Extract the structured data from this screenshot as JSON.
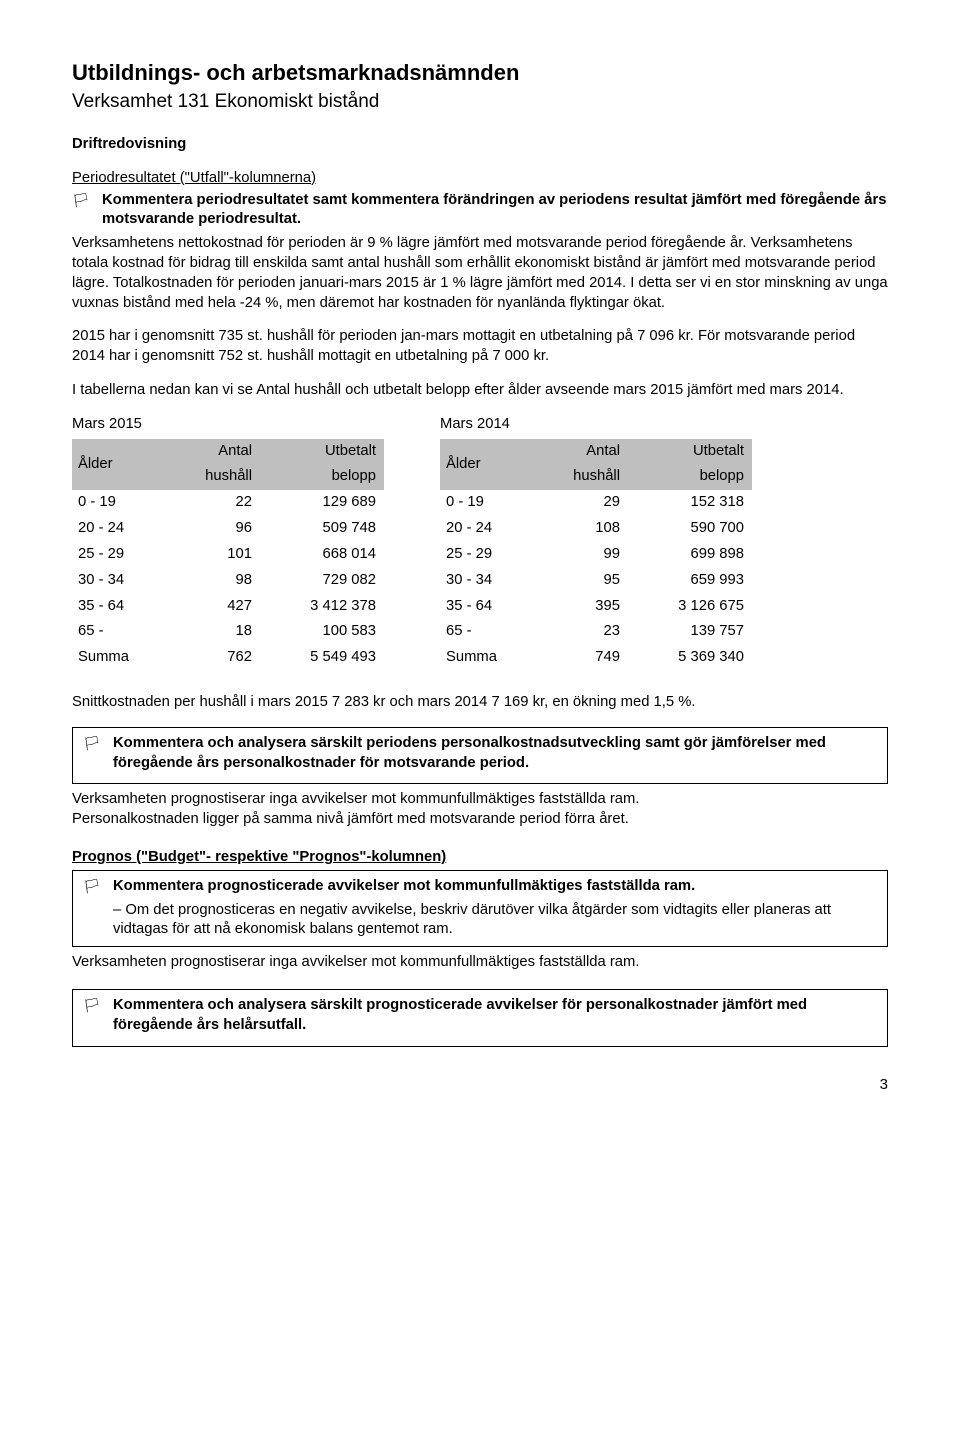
{
  "header": {
    "title": "Utbildnings- och arbetsmarknadsnämnden",
    "subtitle": "Verksamhet 131 Ekonomiskt bistånd"
  },
  "drift": {
    "label": "Driftredovisning",
    "period_heading": "Periodresultatet (\"Utfall\"-kolumnerna)",
    "flag_text": "Kommentera periodresultatet samt kommentera förändringen av periodens resultat jämfört med föregående års motsvarande periodresultat.",
    "body1": "Verksamhetens nettokostnad för perioden är 9 % lägre jämfört med motsvarande period föregående år. Verksamhetens totala kostnad för bidrag till enskilda samt antal hushåll som erhållit ekonomiskt bistånd är jämfört med motsvarande period lägre. Totalkostnaden för perioden januari-mars 2015 är 1 % lägre jämfört med 2014. I detta ser vi en stor minskning av unga vuxnas bistånd med hela -24 %, men däremot har kostnaden för nyanlända flyktingar ökat.",
    "body2": "2015 har i genomsnitt 735 st. hushåll för perioden jan-mars mottagit en utbetalning på 7 096 kr. För motsvarande period 2014 har i genomsnitt 752 st. hushåll mottagit en utbetalning på 7 000 kr.",
    "body3": "I tabellerna nedan kan vi se Antal hushåll och utbetalt belopp efter ålder avseende mars 2015 jämfört med mars 2014."
  },
  "tables": {
    "headers": {
      "age": "Ålder",
      "count_l1": "Antal",
      "count_l2": "hushåll",
      "amount_l1": "Utbetalt",
      "amount_l2": "belopp"
    },
    "left": {
      "caption": "Mars 2015",
      "rows": [
        [
          "0 - 19",
          "22",
          "129 689"
        ],
        [
          "20 - 24",
          "96",
          "509 748"
        ],
        [
          "25 - 29",
          "101",
          "668 014"
        ],
        [
          "30 - 34",
          "98",
          "729 082"
        ],
        [
          "35 - 64",
          "427",
          "3 412 378"
        ],
        [
          "65 -",
          "18",
          "100 583"
        ],
        [
          "Summa",
          "762",
          "5 549 493"
        ]
      ]
    },
    "right": {
      "caption": "Mars 2014",
      "rows": [
        [
          "0 - 19",
          "29",
          "152 318"
        ],
        [
          "20 - 24",
          "108",
          "590 700"
        ],
        [
          "25 - 29",
          "99",
          "699 898"
        ],
        [
          "30 - 34",
          "95",
          "659 993"
        ],
        [
          "35 - 64",
          "395",
          "3 126 675"
        ],
        [
          "65 -",
          "23",
          "139 757"
        ],
        [
          "Summa",
          "749",
          "5 369 340"
        ]
      ]
    }
  },
  "snitt": "Snittkostnaden per hushåll i mars 2015 7 283 kr och mars 2014 7 169 kr, en ökning med 1,5 %.",
  "box1": {
    "flag_text": "Kommentera och analysera särskilt periodens personalkostnadsutveckling samt gör jämförelser med föregående års personalkostnader för motsvarande period."
  },
  "after_box1_l1": "Verksamheten prognostiserar inga avvikelser mot kommunfullmäktiges fastställda ram.",
  "after_box1_l2": "Personalkostnaden ligger på samma nivå jämfört med motsvarande period förra året.",
  "prognos": {
    "heading": "Prognos (\"Budget\"- respektive \"Prognos\"-kolumnen)",
    "flag_text": "Kommentera prognosticerade avvikelser mot kommunfullmäktiges fastställda ram.",
    "indent": "– Om det prognosticeras en negativ avvikelse, beskriv därutöver vilka åtgärder som vidtagits eller planeras att vidtagas för att nå ekonomisk balans gentemot ram.",
    "after": "Verksamheten prognostiserar inga avvikelser mot kommunfullmäktiges fastställda ram."
  },
  "box3": {
    "flag_text": "Kommentera och analysera särskilt prognosticerade avvikelser för personalkostnader jämfört med föregående års helårsutfall."
  },
  "pagenum": "3",
  "flag_glyph": "🏳"
}
